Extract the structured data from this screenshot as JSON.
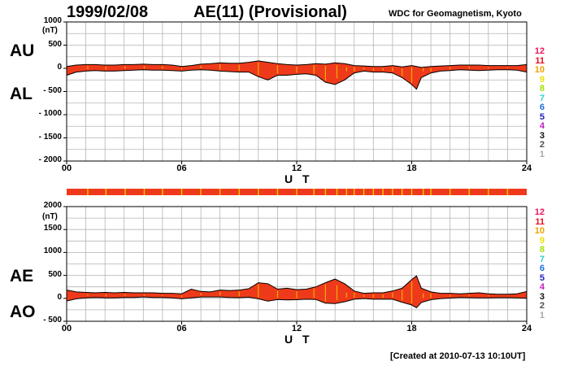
{
  "header": {
    "date": "1999/02/08",
    "title": "AE(11) (Provisional)",
    "source": "WDC for Geomagnetism, Kyoto"
  },
  "footer": {
    "created": "[Created at 2010-07-13 10:10UT]"
  },
  "legend": {
    "labels": [
      "12",
      "11",
      "10",
      "9",
      "8",
      "7",
      "6",
      "5",
      "4",
      "3",
      "2",
      "1"
    ],
    "colors": [
      "#e8185c",
      "#e8101e",
      "#f0a000",
      "#f0e000",
      "#a0e000",
      "#30d0d0",
      "#1c70e0",
      "#2020c0",
      "#c020c0",
      "#101010",
      "#505050",
      "#a8a8a8"
    ]
  },
  "colors": {
    "fill": "#ee3a1a",
    "stripe": "#f0c000",
    "frame": "#000000",
    "grid": "#b4b4b4"
  },
  "chart_data": [
    {
      "type": "area",
      "panel": "upper",
      "series_labels": [
        "AU",
        "AL"
      ],
      "yunit": "(nT)",
      "ylim": [
        -2000,
        1000
      ],
      "yticks": [
        1000,
        500,
        0,
        -500,
        -1000,
        -1500,
        -2000
      ],
      "ytick_labels": [
        "1000",
        "500",
        "0",
        "- 500",
        "- 1000",
        "- 1500",
        "- 2000"
      ],
      "xlim": [
        0,
        24
      ],
      "xticks": [
        0,
        6,
        12,
        18,
        24
      ],
      "xtick_labels": [
        "00",
        "06",
        "12",
        "18",
        "24"
      ],
      "xlabel": "U T",
      "grid": true,
      "x": [
        0,
        0.5,
        1,
        1.5,
        2,
        2.5,
        3,
        3.5,
        4,
        4.5,
        5,
        5.5,
        6,
        6.5,
        7,
        7.5,
        8,
        8.5,
        9,
        9.5,
        10,
        10.5,
        11,
        11.5,
        12,
        12.5,
        13,
        13.5,
        14,
        14.5,
        15,
        15.5,
        16,
        16.5,
        17,
        17.5,
        18,
        18.25,
        18.5,
        19,
        19.5,
        20,
        20.5,
        21,
        21.5,
        22,
        22.5,
        23,
        23.5,
        24
      ],
      "upper_values": [
        40,
        70,
        80,
        80,
        70,
        70,
        80,
        80,
        90,
        80,
        80,
        70,
        40,
        60,
        90,
        100,
        120,
        110,
        110,
        130,
        160,
        130,
        100,
        80,
        70,
        80,
        100,
        90,
        120,
        100,
        60,
        50,
        40,
        40,
        60,
        30,
        60,
        40,
        20,
        40,
        50,
        60,
        70,
        70,
        70,
        60,
        60,
        60,
        60,
        80
      ],
      "lower_values": [
        -150,
        -80,
        -60,
        -50,
        -60,
        -60,
        -50,
        -40,
        -30,
        -40,
        -40,
        -50,
        -60,
        -40,
        -30,
        -40,
        -60,
        -70,
        -80,
        -80,
        -180,
        -250,
        -150,
        -150,
        -130,
        -120,
        -150,
        -300,
        -350,
        -250,
        -100,
        -60,
        -80,
        -80,
        -100,
        -200,
        -350,
        -450,
        -200,
        -100,
        -60,
        -50,
        -30,
        -40,
        -50,
        -40,
        -30,
        -30,
        -40,
        -80
      ]
    },
    {
      "type": "area",
      "panel": "lower",
      "series_labels": [
        "AE",
        "AO"
      ],
      "yunit": "(nT)",
      "ylim": [
        -500,
        2000
      ],
      "yticks": [
        2000,
        1500,
        1000,
        500,
        0,
        -500
      ],
      "ytick_labels": [
        "2000",
        "1500",
        "1000",
        "500",
        "0",
        "- 500"
      ],
      "xlim": [
        0,
        24
      ],
      "xticks": [
        0,
        6,
        12,
        18,
        24
      ],
      "xtick_labels": [
        "00",
        "06",
        "12",
        "18",
        "24"
      ],
      "xlabel": "U T",
      "grid": true,
      "x": [
        0,
        0.5,
        1,
        1.5,
        2,
        2.5,
        3,
        3.5,
        4,
        4.5,
        5,
        5.5,
        6,
        6.5,
        7,
        7.5,
        8,
        8.5,
        9,
        9.5,
        10,
        10.5,
        11,
        11.5,
        12,
        12.5,
        13,
        13.5,
        14,
        14.5,
        15,
        15.5,
        16,
        16.5,
        17,
        17.5,
        18,
        18.25,
        18.5,
        19,
        19.5,
        20,
        20.5,
        21,
        21.5,
        22,
        22.5,
        23,
        23.5,
        24
      ],
      "ae_values": [
        180,
        140,
        130,
        120,
        130,
        120,
        130,
        120,
        120,
        120,
        110,
        110,
        100,
        200,
        150,
        140,
        180,
        170,
        180,
        210,
        340,
        320,
        200,
        220,
        190,
        200,
        250,
        340,
        420,
        320,
        160,
        110,
        120,
        120,
        160,
        220,
        410,
        490,
        220,
        140,
        110,
        110,
        100,
        110,
        120,
        100,
        90,
        90,
        100,
        150
      ],
      "ao_values": [
        -60,
        -10,
        10,
        20,
        10,
        10,
        20,
        20,
        30,
        20,
        20,
        10,
        -10,
        10,
        30,
        30,
        30,
        20,
        15,
        25,
        -10,
        -60,
        -25,
        -35,
        -30,
        -20,
        -25,
        -105,
        -115,
        -75,
        -20,
        -5,
        -20,
        -20,
        -20,
        -85,
        -145,
        -205,
        -90,
        -30,
        -5,
        5,
        20,
        15,
        10,
        10,
        15,
        15,
        10,
        0
      ]
    }
  ],
  "station_bar": {
    "station_change_hours": [
      1.1,
      2.05,
      3.05,
      4.05,
      5.0,
      6.0,
      7.0,
      8.0,
      9.0,
      10.0,
      11.0,
      12.0,
      12.9,
      13.5,
      14.1,
      14.6,
      15.0,
      15.5,
      16.0,
      16.5,
      17.0,
      17.5,
      18.0,
      18.6,
      19.0,
      20.0,
      21.0,
      22.0,
      23.0
    ]
  }
}
